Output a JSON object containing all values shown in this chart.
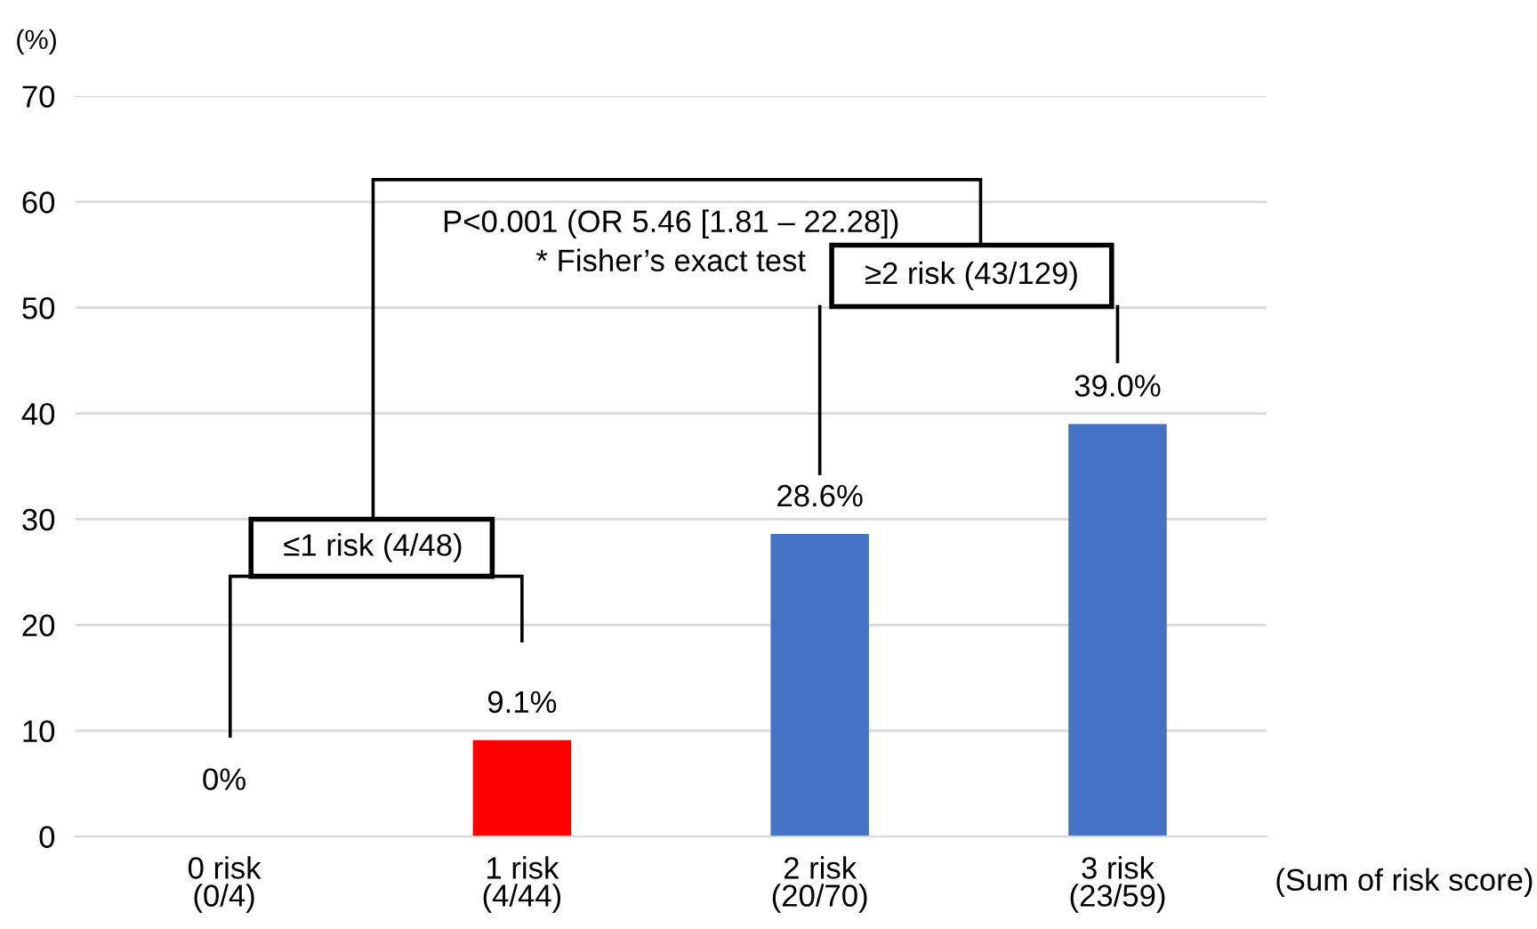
{
  "chart_data": {
    "type": "bar",
    "categories": [
      "0 risk\n(0/4)",
      "1 risk\n(4/44)",
      "2 risk\n(20/70)",
      "3 risk\n(23/59)"
    ],
    "values": [
      0,
      9.1,
      28.6,
      39.0
    ],
    "colors": [
      "#4472c4",
      "#ff0000",
      "#4472c4",
      "#4472c4"
    ],
    "value_labels": [
      "0%",
      "9.1%",
      "28.6%",
      "39.0%"
    ],
    "ylabel": "(%)",
    "xlabel": "(Sum of risk score)",
    "ylim": [
      0,
      70
    ],
    "yticks": [
      0,
      10,
      20,
      30,
      40,
      50,
      60,
      70
    ],
    "grid": "y",
    "annotations": [
      "≤1 risk (4/48)",
      "≥2 risk (43/129)",
      "P<0.001 (OR 5.46 [1.81 – 22.28])",
      "* Fisher’s exact test"
    ]
  }
}
